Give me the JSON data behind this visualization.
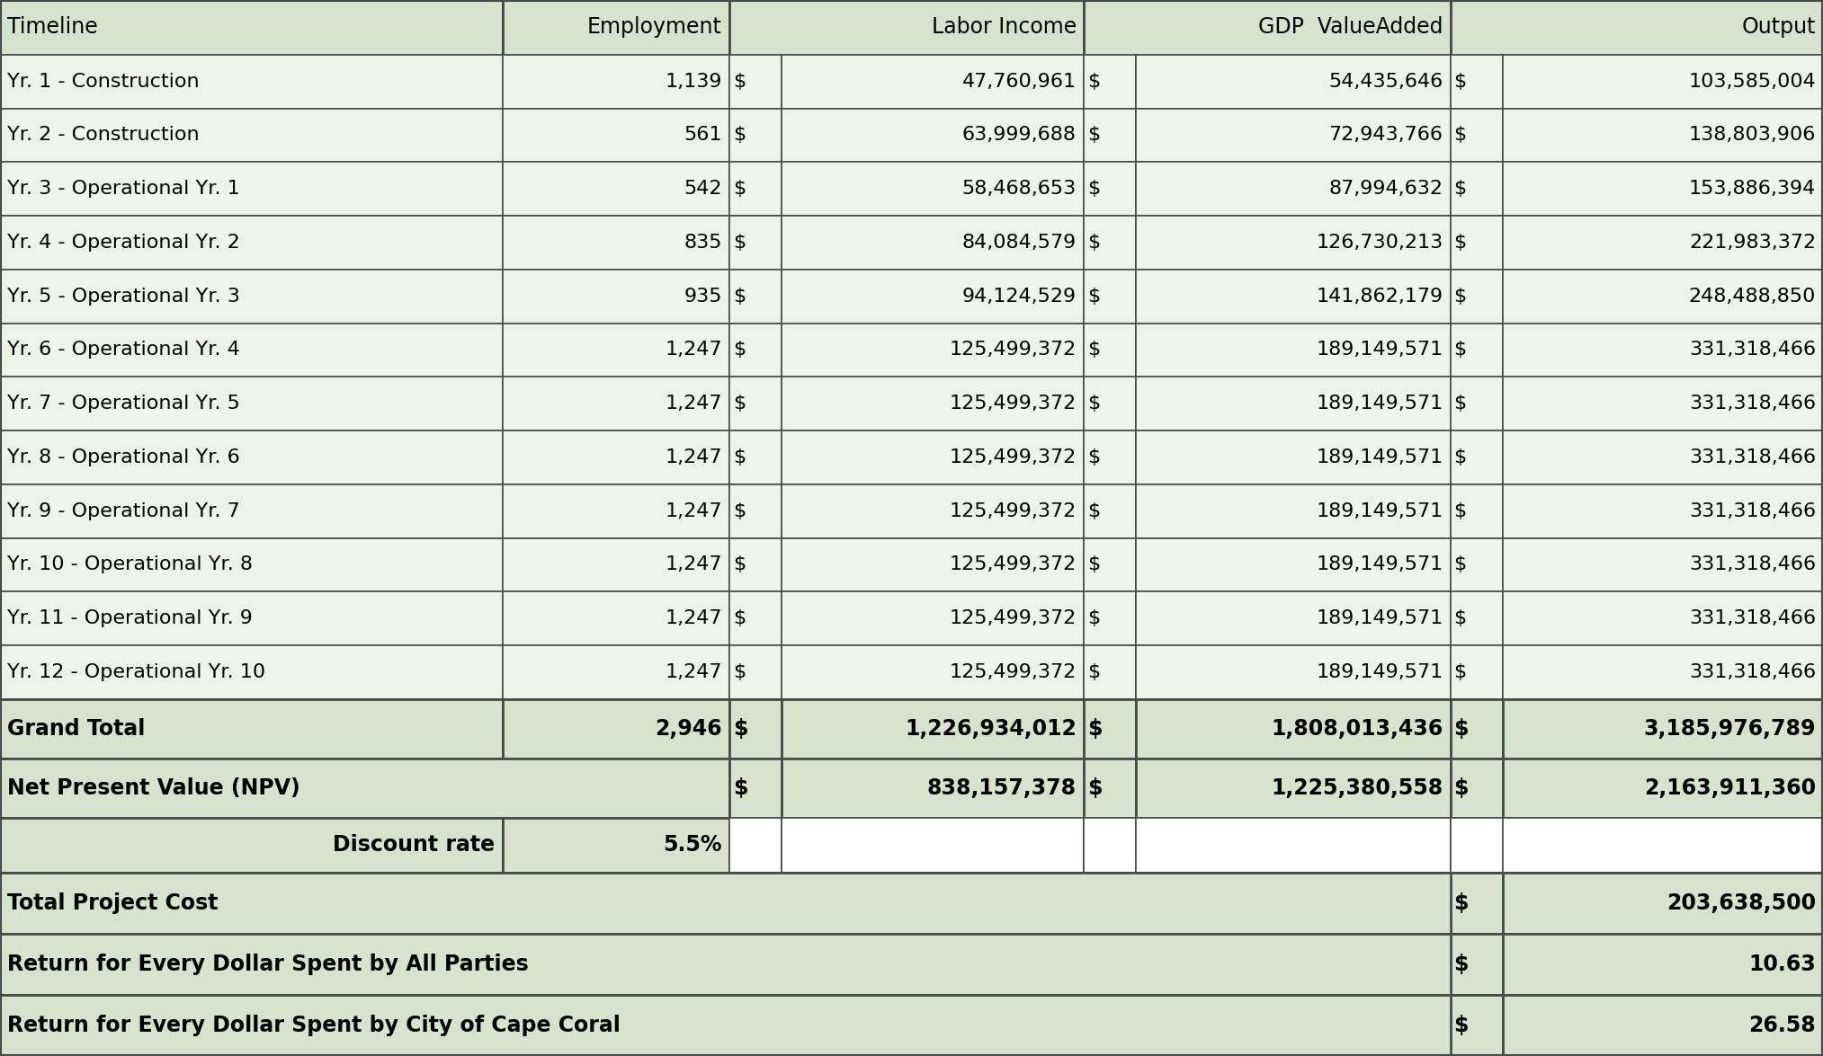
{
  "rows": [
    [
      "Yr. 1 - Construction",
      "1,139",
      "47,760,961",
      "54,435,646",
      "103,585,004"
    ],
    [
      "Yr. 2 - Construction",
      "561",
      "63,999,688",
      "72,943,766",
      "138,803,906"
    ],
    [
      "Yr. 3 - Operational Yr. 1",
      "542",
      "58,468,653",
      "87,994,632",
      "153,886,394"
    ],
    [
      "Yr. 4 - Operational Yr. 2",
      "835",
      "84,084,579",
      "126,730,213",
      "221,983,372"
    ],
    [
      "Yr. 5 - Operational Yr. 3",
      "935",
      "94,124,529",
      "141,862,179",
      "248,488,850"
    ],
    [
      "Yr. 6 - Operational Yr. 4",
      "1,247",
      "125,499,372",
      "189,149,571",
      "331,318,466"
    ],
    [
      "Yr. 7 - Operational Yr. 5",
      "1,247",
      "125,499,372",
      "189,149,571",
      "331,318,466"
    ],
    [
      "Yr. 8 - Operational Yr. 6",
      "1,247",
      "125,499,372",
      "189,149,571",
      "331,318,466"
    ],
    [
      "Yr. 9 - Operational Yr. 7",
      "1,247",
      "125,499,372",
      "189,149,571",
      "331,318,466"
    ],
    [
      "Yr. 10 - Operational Yr. 8",
      "1,247",
      "125,499,372",
      "189,149,571",
      "331,318,466"
    ],
    [
      "Yr. 11 - Operational Yr. 9",
      "1,247",
      "125,499,372",
      "189,149,571",
      "331,318,466"
    ],
    [
      "Yr. 12 - Operational Yr. 10",
      "1,247",
      "125,499,372",
      "189,149,571",
      "331,318,466"
    ]
  ],
  "grand_total": [
    "Grand Total",
    "2,946",
    "1,226,934,012",
    "1,808,013,436",
    "3,185,976,789"
  ],
  "npv": [
    "Net Present Value (NPV)",
    "",
    "838,157,378",
    "1,225,380,558",
    "2,163,911,360"
  ],
  "discount": [
    "Discount rate",
    "5.5%"
  ],
  "bottom_rows": [
    [
      "Total Project Cost",
      "203,638,500"
    ],
    [
      "Return for Every Dollar Spent by All Parties",
      "10.63"
    ],
    [
      "Return for Every Dollar Spent by City of Cape Coral",
      "26.58"
    ]
  ],
  "header_labels": [
    "Timeline",
    "Employment",
    "Labor Income",
    "GDP  ValueAdded",
    "Output"
  ],
  "col_bg": "#d6e4ce",
  "data_bg": "#edf3e8",
  "white_bg": "#ffffff",
  "border_color": "#4a4a4a",
  "text_color": "#000000",
  "header_fs": 17,
  "data_fs": 16,
  "bold_fs": 17
}
